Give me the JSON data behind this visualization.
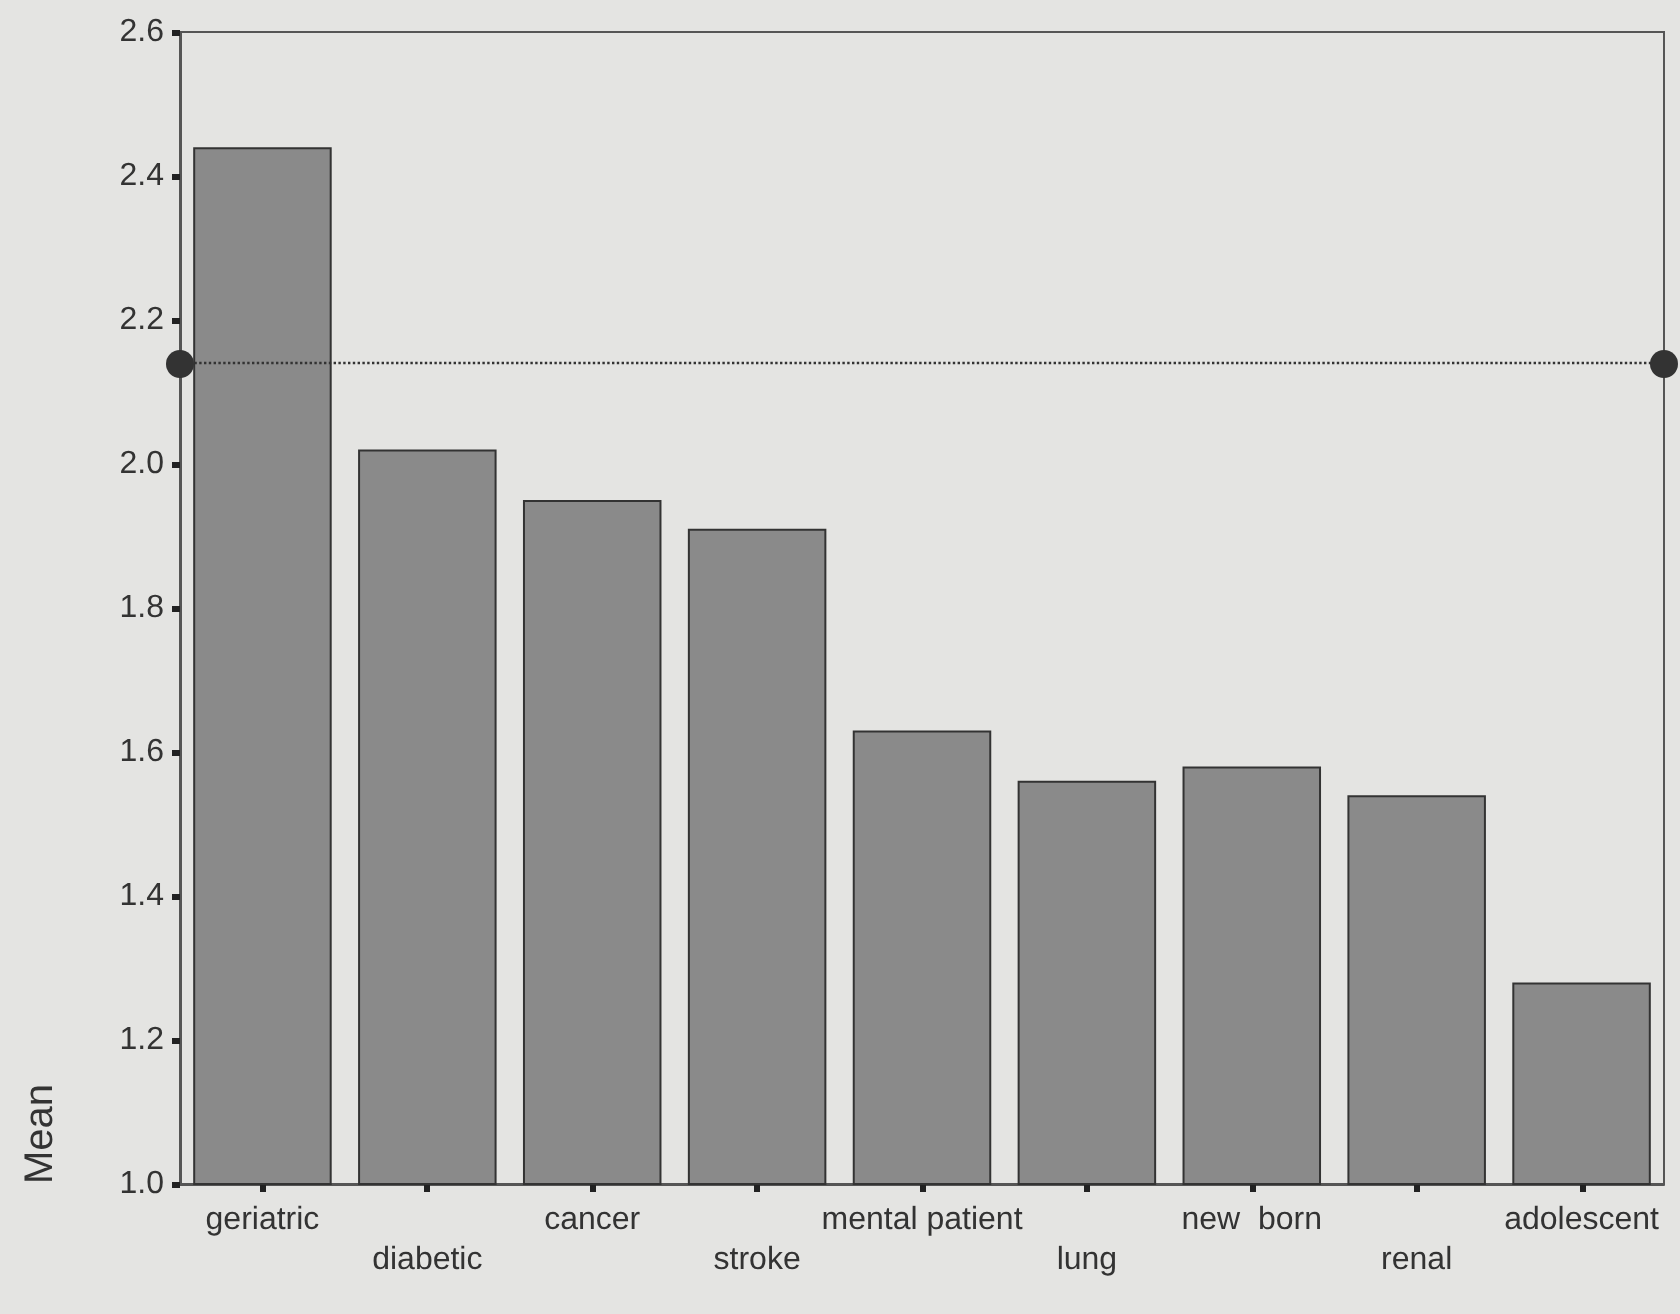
{
  "chart_data": {
    "type": "bar",
    "ylabel": "Mean",
    "categories": [
      "geriatric",
      "diabetic",
      "cancer",
      "stroke",
      "mental patient",
      "lung",
      "new  born",
      "renal",
      "adolescent"
    ],
    "values": [
      2.44,
      2.02,
      1.95,
      1.91,
      1.63,
      1.56,
      1.58,
      1.54,
      1.28
    ],
    "color": "#8a8a8a",
    "ylim": [
      1.0,
      2.6
    ],
    "yticks": [
      {
        "value": 1.0,
        "label": "1.0"
      },
      1.2,
      1.4,
      1.6,
      1.8,
      {
        "value": 2.0,
        "label": "2.0"
      },
      2.2,
      2.4,
      2.6
    ],
    "ref_lines": [
      {
        "axis": "y",
        "value": 2.14,
        "line_style": "dotted",
        "color": "#333333"
      }
    ],
    "grid": false
  }
}
